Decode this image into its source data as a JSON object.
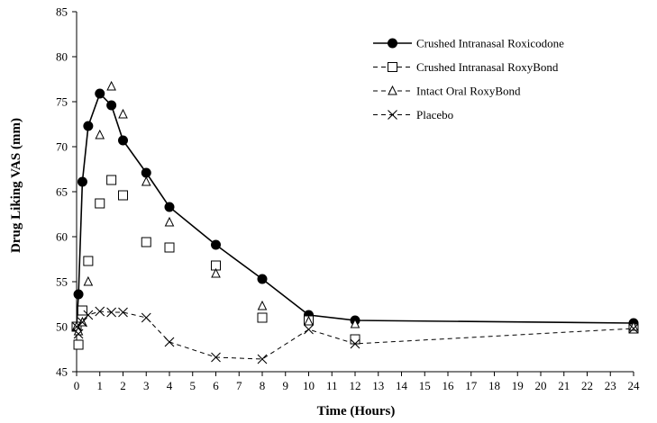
{
  "chart_data": {
    "type": "line",
    "title": "",
    "xlabel": "Time (Hours)",
    "ylabel": "Drug Liking VAS (mm)",
    "xlim": [
      0,
      24
    ],
    "ylim": [
      45,
      85
    ],
    "x_ticks": [
      0,
      1,
      2,
      3,
      4,
      5,
      6,
      7,
      8,
      9,
      10,
      11,
      12,
      13,
      14,
      15,
      16,
      17,
      18,
      19,
      20,
      21,
      22,
      23,
      24
    ],
    "y_ticks": [
      45,
      50,
      55,
      60,
      65,
      70,
      75,
      80,
      85
    ],
    "grid": false,
    "legend_position": "top-right",
    "series": [
      {
        "name": "Crushed Intranasal Roxicodone",
        "marker": "filled-circle",
        "line": "solid",
        "points": [
          [
            0,
            50.0
          ],
          [
            0.08,
            53.6
          ],
          [
            0.25,
            66.1
          ],
          [
            0.5,
            72.3
          ],
          [
            1,
            75.9
          ],
          [
            1.5,
            74.6
          ],
          [
            2,
            70.7
          ],
          [
            3,
            67.1
          ],
          [
            4,
            63.3
          ],
          [
            6,
            59.1
          ],
          [
            8,
            55.3
          ],
          [
            10,
            51.3
          ],
          [
            12,
            50.7
          ],
          [
            24,
            50.4
          ]
        ]
      },
      {
        "name": "Crushed Intranasal RoxyBond",
        "marker": "open-square",
        "line": "none",
        "points": [
          [
            0,
            50.0
          ],
          [
            0.08,
            48.0
          ],
          [
            0.25,
            51.8
          ],
          [
            0.5,
            57.3
          ],
          [
            1,
            63.7
          ],
          [
            1.5,
            66.3
          ],
          [
            2,
            64.6
          ],
          [
            3,
            59.4
          ],
          [
            4,
            58.8
          ],
          [
            6,
            56.8
          ],
          [
            8,
            51.0
          ],
          [
            10,
            50.7
          ],
          [
            12,
            48.6
          ],
          [
            24,
            49.8
          ]
        ]
      },
      {
        "name": "Intact Oral RoxyBond",
        "marker": "open-triangle",
        "line": "none",
        "points": [
          [
            0,
            50.0
          ],
          [
            0.08,
            49.5
          ],
          [
            0.25,
            50.5
          ],
          [
            0.5,
            55.0
          ],
          [
            1,
            71.3
          ],
          [
            1.5,
            76.7
          ],
          [
            2,
            73.6
          ],
          [
            3,
            66.1
          ],
          [
            4,
            61.6
          ],
          [
            6,
            55.9
          ],
          [
            8,
            52.3
          ],
          [
            10,
            50.6
          ],
          [
            12,
            50.3
          ],
          [
            24,
            50.0
          ]
        ]
      },
      {
        "name": "Placebo",
        "marker": "x",
        "line": "dashed",
        "points": [
          [
            0,
            50.0
          ],
          [
            0.08,
            49.2
          ],
          [
            0.25,
            50.5
          ],
          [
            0.5,
            51.3
          ],
          [
            1,
            51.7
          ],
          [
            1.5,
            51.6
          ],
          [
            2,
            51.6
          ],
          [
            3,
            51.0
          ],
          [
            4,
            48.3
          ],
          [
            6,
            46.6
          ],
          [
            8,
            46.4
          ],
          [
            10,
            49.7
          ],
          [
            12,
            48.1
          ],
          [
            24,
            49.8
          ]
        ]
      }
    ]
  }
}
